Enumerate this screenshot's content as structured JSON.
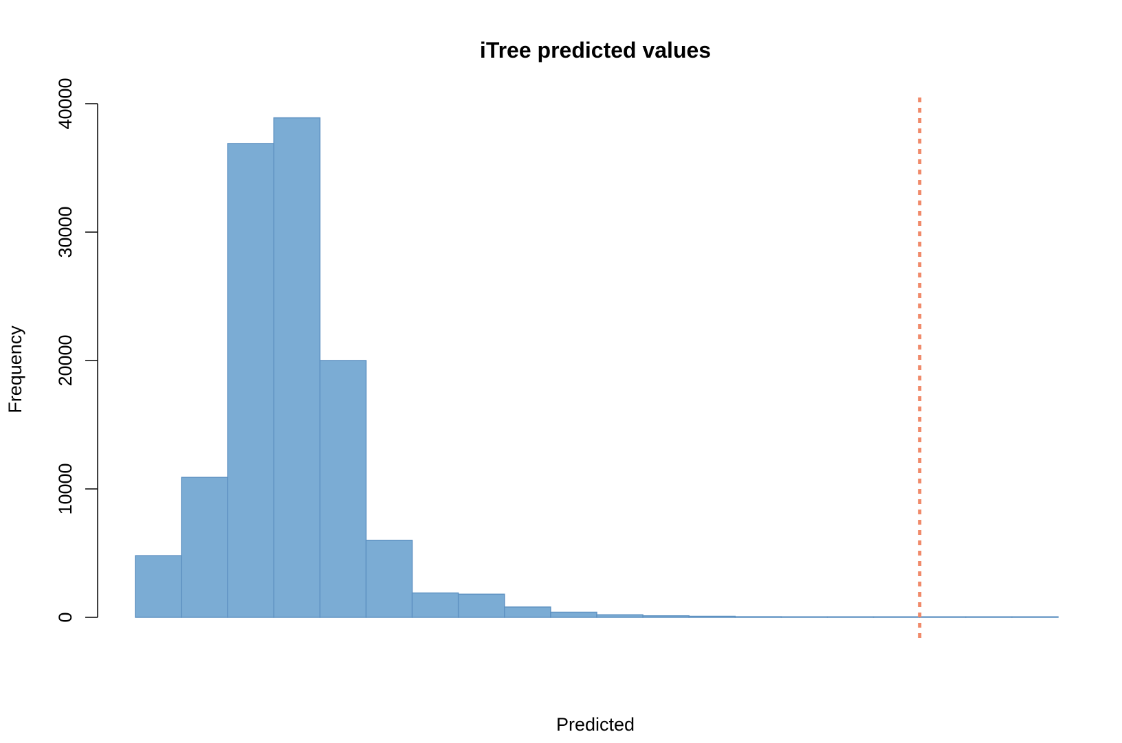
{
  "chart_data": {
    "type": "bar",
    "title": "iTree predicted values",
    "xlabel": "Predicted",
    "ylabel": "Frequency",
    "bins": 20,
    "values": [
      4800,
      10900,
      36900,
      38900,
      20000,
      6000,
      1900,
      1800,
      800,
      400,
      200,
      120,
      80,
      50,
      30,
      20,
      15,
      10,
      10,
      10
    ],
    "ylim": [
      0,
      40000
    ],
    "yticks": [
      0,
      10000,
      20000,
      30000,
      40000
    ],
    "ytick_labels": [
      "0",
      "10000",
      "20000",
      "30000",
      "40000"
    ],
    "x_axis_shown": false,
    "grid": false,
    "reference_line": {
      "style": "dotted",
      "color": "#f08a6a",
      "position_in_bins": 17
    },
    "colors": {
      "bar_fill": "#7bacd4",
      "bar_edge": "#5f92c2",
      "axis": "#000000"
    }
  }
}
